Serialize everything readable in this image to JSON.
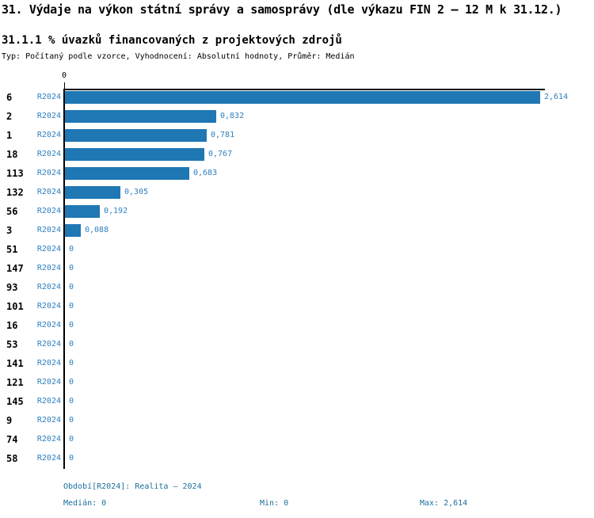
{
  "title": "31. Výdaje na výkon státní správy a samosprávy (dle výkazu FIN 2 – 12 M k 31.12.)",
  "subtitle": "31.1.1 % úvazků financovaných z projektových zdrojů",
  "meta": "Typ: Počítaný podle vzorce, Vyhodnocení: Absolutní hodnoty, Průměr: Medián",
  "colors": {
    "bar": "#1f77b4",
    "label_blue": "#2e7fbe",
    "footer_blue": "#1e6f9c",
    "axis": "#000000",
    "text": "#000000",
    "background": "#ffffff"
  },
  "chart_data": {
    "type": "bar",
    "orientation": "horizontal",
    "title": "31.1.1 % úvazků financovaných z projektových zdrojů",
    "series_label": "R2024",
    "axis_tick_label": "0",
    "grid": false,
    "legend_position": "none",
    "xlim": [
      0,
      2.614
    ],
    "categories": [
      "6",
      "2",
      "1",
      "18",
      "113",
      "132",
      "56",
      "3",
      "51",
      "147",
      "93",
      "101",
      "16",
      "53",
      "141",
      "121",
      "145",
      "9",
      "74",
      "58"
    ],
    "values": [
      2.614,
      0.832,
      0.781,
      0.767,
      0.683,
      0.305,
      0.192,
      0.088,
      0,
      0,
      0,
      0,
      0,
      0,
      0,
      0,
      0,
      0,
      0,
      0
    ],
    "value_labels": [
      "2,614",
      "0,832",
      "0,781",
      "0,767",
      "0,683",
      "0,305",
      "0,192",
      "0,088",
      "0",
      "0",
      "0",
      "0",
      "0",
      "0",
      "0",
      "0",
      "0",
      "0",
      "0",
      "0"
    ]
  },
  "footer": {
    "period": "Období[R2024]: Realita – 2024",
    "median": "Medián: 0",
    "min": "Min: 0",
    "max": "Max: 2,614"
  }
}
